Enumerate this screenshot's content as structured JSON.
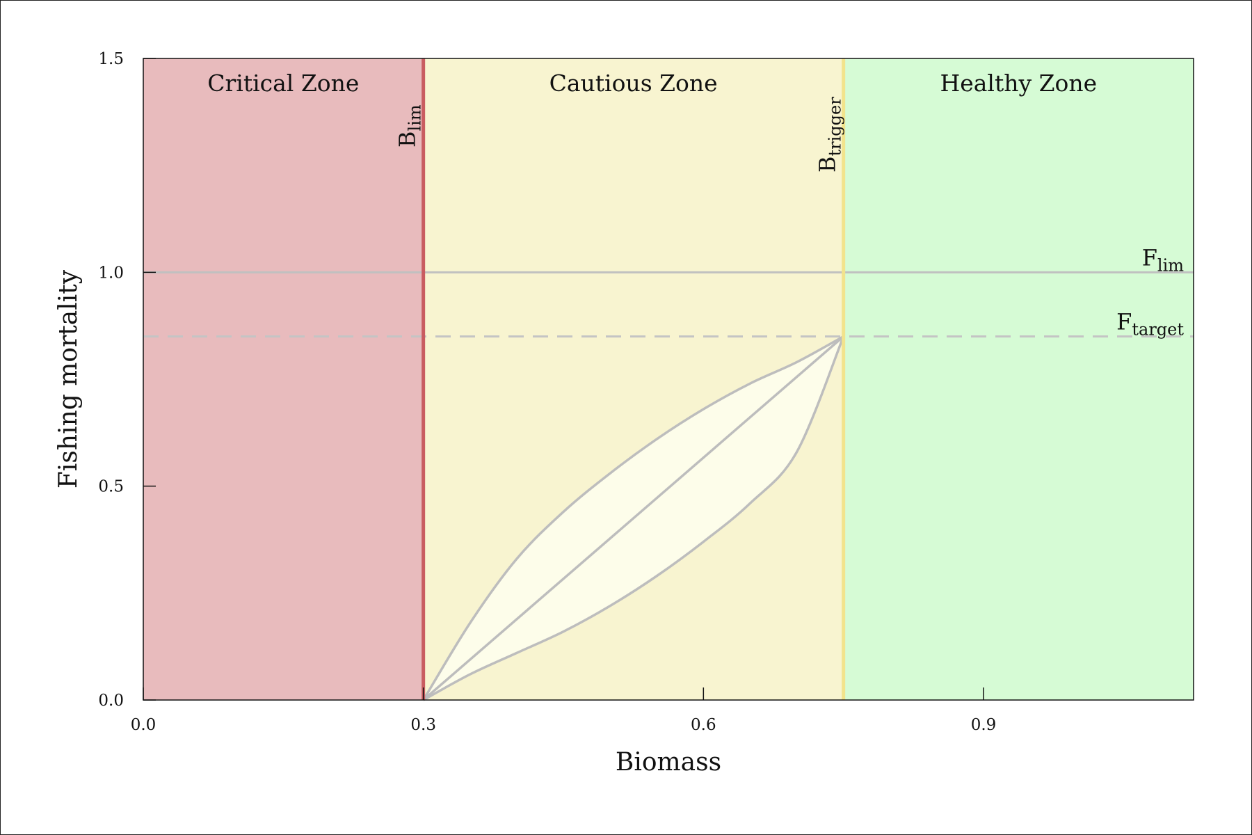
{
  "chart_data": {
    "type": "area",
    "xlabel": "Biomass",
    "ylabel": "Fishing mortality",
    "xlim": [
      0.0,
      1.125
    ],
    "ylim": [
      0.0,
      1.5
    ],
    "x_ticks": [
      "0.0",
      "0.3",
      "0.6",
      "0.9"
    ],
    "y_ticks": [
      "0.0",
      "0.5",
      "1.0",
      "1.5"
    ],
    "grid": false,
    "legend": "none",
    "zones": [
      {
        "label": "Critical Zone",
        "x_from": 0.0,
        "x_to": 0.3,
        "color": "#e8bbbd"
      },
      {
        "label": "Cautious Zone",
        "x_from": 0.3,
        "x_to": 0.75,
        "color": "#f8f4d0"
      },
      {
        "label": "Healthy Zone",
        "x_from": 0.75,
        "x_to": 1.125,
        "color": "#d6fbd5"
      }
    ],
    "reference_lines": [
      {
        "orientation": "vertical",
        "base": "B",
        "sub": "lim",
        "value": 0.3,
        "color": "#c95c60",
        "style": "solid"
      },
      {
        "orientation": "vertical",
        "base": "B",
        "sub": "trigger",
        "value": 0.75,
        "color": "#f2e38c",
        "style": "solid"
      },
      {
        "orientation": "horizontal",
        "base": "F",
        "sub": "lim",
        "value": 1.0,
        "color": "#c0c0c0",
        "style": "solid"
      },
      {
        "orientation": "horizontal",
        "base": "F",
        "sub": "target",
        "value": 0.85,
        "color": "#c4c4c4",
        "style": "dashed"
      }
    ],
    "series": [
      {
        "values": [
          [
            0.3,
            0.0
          ],
          [
            0.35,
            0.18
          ],
          [
            0.4,
            0.33
          ],
          [
            0.45,
            0.44
          ],
          [
            0.5,
            0.53
          ],
          [
            0.55,
            0.61
          ],
          [
            0.6,
            0.68
          ],
          [
            0.65,
            0.74
          ],
          [
            0.7,
            0.79
          ],
          [
            0.75,
            0.85
          ]
        ]
      },
      {
        "values": [
          [
            0.3,
            0.0
          ],
          [
            0.75,
            0.85
          ]
        ]
      },
      {
        "values": [
          [
            0.3,
            0.0
          ],
          [
            0.35,
            0.06
          ],
          [
            0.4,
            0.11
          ],
          [
            0.45,
            0.16
          ],
          [
            0.5,
            0.22
          ],
          [
            0.55,
            0.29
          ],
          [
            0.6,
            0.37
          ],
          [
            0.65,
            0.46
          ],
          [
            0.7,
            0.58
          ],
          [
            0.75,
            0.85
          ]
        ]
      }
    ],
    "envelope_fill": "#fdfdea",
    "curve_color": "#bdbdbd"
  }
}
